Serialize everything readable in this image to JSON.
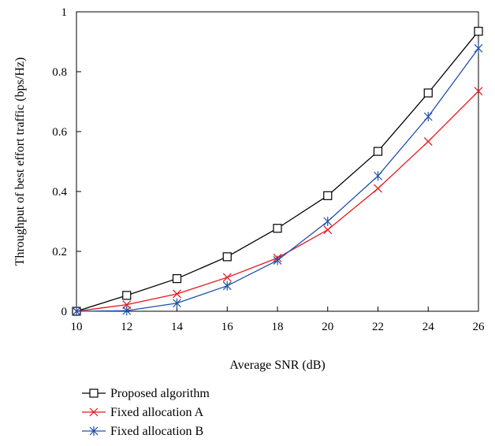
{
  "chart_data": {
    "type": "line",
    "title": "",
    "xlabel": "Average SNR (dB)",
    "ylabel": "Throughput of best effort traffic (bps/Hz)",
    "xlim": [
      10,
      26
    ],
    "ylim": [
      0,
      1
    ],
    "xticks": [
      "10",
      "12",
      "14",
      "16",
      "18",
      "20",
      "22",
      "24",
      "26"
    ],
    "yticks": [
      "0",
      "0.2",
      "0.4",
      "0.6",
      "0.8",
      "1"
    ],
    "grid": false,
    "legend_position": "bottom-left, below plot",
    "x": [
      10,
      12,
      14,
      16,
      18,
      20,
      22,
      24,
      26
    ],
    "series": [
      {
        "name": "Proposed algorithm",
        "color": "#000000",
        "marker": "square",
        "values": [
          0,
          0.053,
          0.109,
          0.182,
          0.277,
          0.386,
          0.534,
          0.729,
          0.935
        ]
      },
      {
        "name": "Fixed allocation A",
        "color": "#e8151b",
        "marker": "x",
        "values": [
          0,
          0.022,
          0.058,
          0.113,
          0.178,
          0.272,
          0.41,
          0.567,
          0.735
        ]
      },
      {
        "name": "Fixed allocation B",
        "color": "#1f4fa8",
        "marker": "asterisk",
        "values": [
          0,
          0.002,
          0.027,
          0.085,
          0.17,
          0.3,
          0.452,
          0.65,
          0.878
        ]
      }
    ]
  }
}
